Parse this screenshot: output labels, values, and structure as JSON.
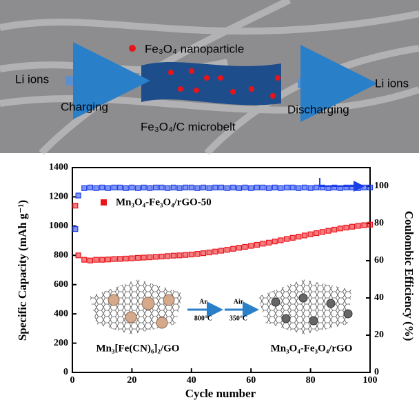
{
  "diagram": {
    "nanoparticle_label": "Fe₃O₄ nanoparticle",
    "left_label": "Li ions",
    "charging": "Charging",
    "microbelt": "Fe₃O₄/C microbelt",
    "discharging": "Discharging",
    "right_label": "Li ions"
  },
  "chart_data": {
    "type": "scatter",
    "x_label": "Cycle number",
    "y_label": "Specific Capacity (mAh g⁻¹)",
    "y2_label": "Coulombic Efficiency (%)",
    "x": [
      1,
      2,
      4,
      6,
      8,
      10,
      12,
      14,
      16,
      18,
      20,
      22,
      24,
      26,
      28,
      30,
      32,
      34,
      36,
      38,
      40,
      42,
      44,
      46,
      48,
      50,
      52,
      54,
      56,
      58,
      60,
      62,
      64,
      66,
      68,
      70,
      72,
      74,
      76,
      78,
      80,
      82,
      84,
      86,
      88,
      90,
      92,
      94,
      96,
      98,
      100
    ],
    "series": [
      {
        "name": "Mn₃O₄-Fe₃O₄/rGO-50",
        "color": "#e8141a",
        "values": [
          1140,
          800,
          770,
          765,
          770,
          770,
          772,
          775,
          776,
          778,
          780,
          783,
          785,
          787,
          790,
          792,
          795,
          798,
          800,
          803,
          806,
          810,
          815,
          820,
          826,
          832,
          838,
          845,
          852,
          858,
          865,
          872,
          880,
          887,
          895,
          903,
          912,
          920,
          928,
          936,
          944,
          952,
          960,
          968,
          976,
          984,
          990,
          996,
          1002,
          1006,
          1010
        ]
      },
      {
        "name": null,
        "color": "#1a3ee8",
        "axis": "y2",
        "values": [
          77,
          95,
          99,
          99.3,
          99,
          99.3,
          99,
          99.3,
          99.3,
          99,
          99.3,
          99,
          99.3,
          99,
          99.3,
          99.3,
          99,
          99.3,
          99,
          99.3,
          99.3,
          99,
          99.3,
          99,
          99.3,
          99.3,
          99,
          99.3,
          99,
          99.3,
          99,
          99.3,
          99.3,
          99,
          99.3,
          99,
          99.3,
          99.3,
          99,
          99.3,
          99,
          99.3,
          99.3,
          99,
          99.3,
          99,
          99.3,
          99.3,
          99,
          99.3,
          99.3
        ]
      }
    ],
    "xlim": [
      0,
      100
    ],
    "xticks": [
      0,
      20,
      40,
      60,
      80,
      100
    ],
    "ylim": [
      0,
      1400
    ],
    "yticks": [
      0,
      200,
      400,
      600,
      800,
      1000,
      1200,
      1400
    ],
    "y2lim": [
      0,
      110
    ],
    "y2ticks": [
      0,
      20,
      40,
      60,
      80,
      100
    ],
    "annotations": [
      "Ar",
      "800°C",
      "Air",
      "350°C",
      "Mn₃[Fe(CN)₆]₂/GO",
      "Mn₃O₄-Fe₃O₄/rGO"
    ]
  }
}
